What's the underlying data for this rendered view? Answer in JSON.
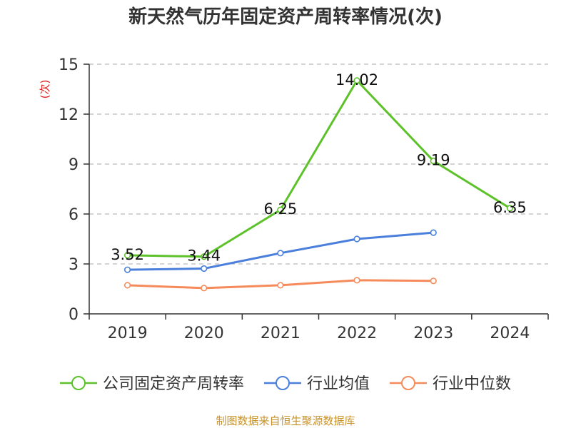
{
  "chart_data": {
    "type": "line",
    "title": "新天然气历年固定资产周转率情况(次)",
    "ylabel": "(次)",
    "xlabel": "",
    "categories": [
      "2019",
      "2020",
      "2021",
      "2022",
      "2023",
      "2024"
    ],
    "ylim": [
      0,
      15
    ],
    "yticks": [
      0,
      3,
      6,
      9,
      12,
      15
    ],
    "grid": true,
    "legend_position": "bottom",
    "series": [
      {
        "name": "公司固定资产周转率",
        "color": "#5dc22a",
        "values": [
          3.52,
          3.44,
          6.25,
          14.02,
          9.19,
          6.35
        ],
        "show_labels": true
      },
      {
        "name": "行业均值",
        "color": "#4a7fdc",
        "values": [
          2.65,
          2.72,
          3.65,
          4.5,
          4.88,
          null
        ],
        "show_labels": false
      },
      {
        "name": "行业中位数",
        "color": "#f58b5a",
        "values": [
          1.72,
          1.55,
          1.72,
          2.02,
          1.98,
          null
        ],
        "show_labels": false
      }
    ]
  },
  "source": "制图数据来自恒生聚源数据库"
}
